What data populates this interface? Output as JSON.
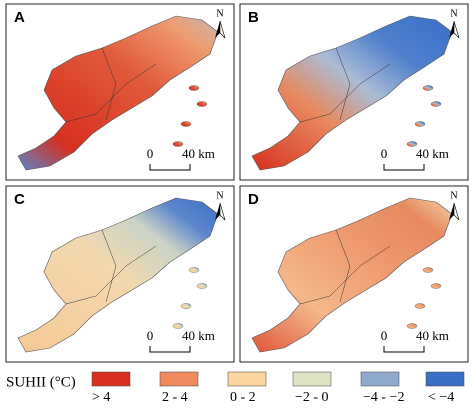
{
  "panels": [
    {
      "label": "A"
    },
    {
      "label": "B"
    },
    {
      "label": "C"
    },
    {
      "label": "D"
    }
  ],
  "north_label": "N",
  "scale_bar": {
    "start": "0",
    "end": "40 km"
  },
  "legend": {
    "title": "SUHII (°C)",
    "items": [
      {
        "label": "> 4",
        "color": "#d7301f"
      },
      {
        "label": "2 - 4",
        "color": "#ef8a5f"
      },
      {
        "label": "0 - 2",
        "color": "#fbd49e"
      },
      {
        "label": "−2 - 0",
        "color": "#dce4c4"
      },
      {
        "label": "−4 - −2",
        "color": "#8fa9cc"
      },
      {
        "label": "< −4",
        "color": "#3a6fc6"
      }
    ]
  }
}
